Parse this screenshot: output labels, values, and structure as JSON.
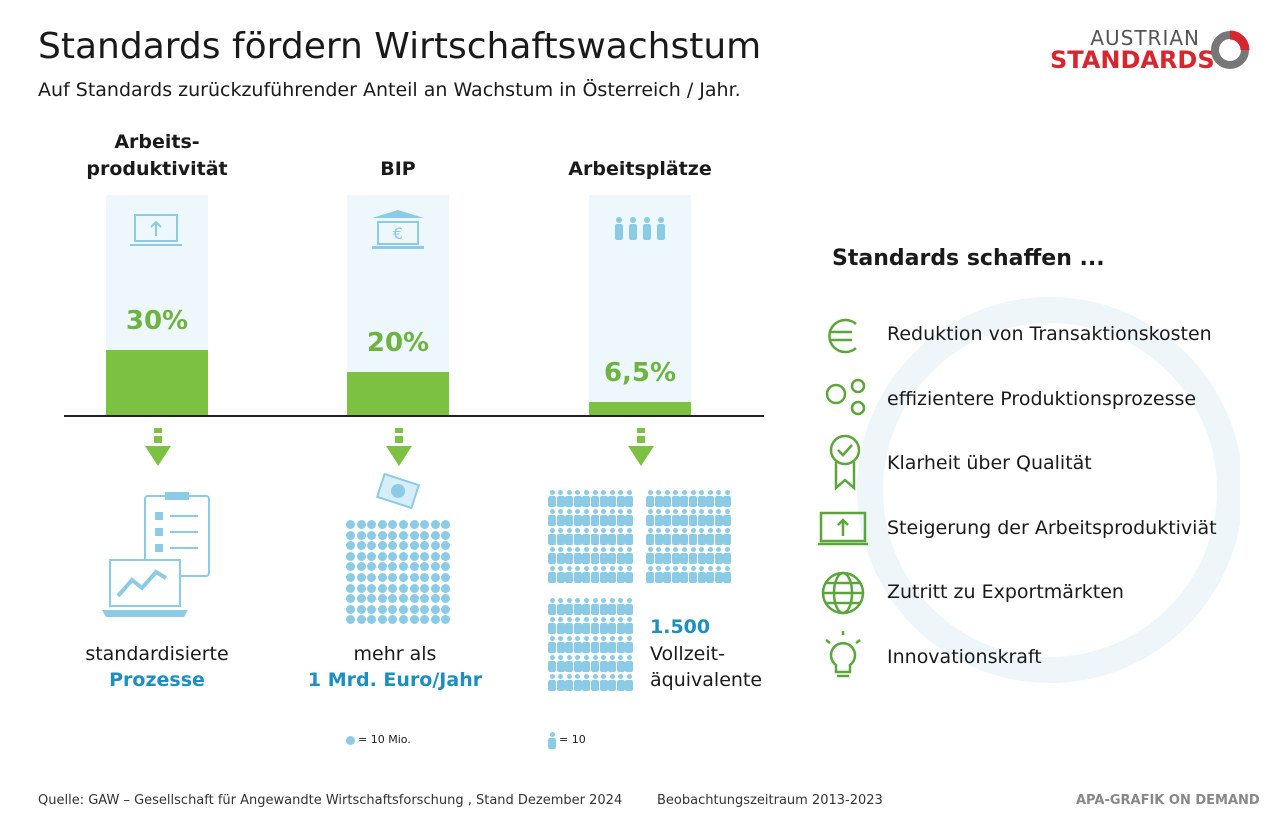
{
  "header": {
    "title": "Standards fördern Wirtschaftswachstum",
    "subtitle": "Auf Standards zurückzuführender Anteil an Wachstum in Österreich / Jahr.",
    "logo_top": "AUSTRIAN",
    "logo_bottom": "STANDARDS"
  },
  "chart_data": {
    "type": "bar",
    "categories": [
      "Arbeits-\nproduktivität",
      "BIP",
      "Arbeitsplätze"
    ],
    "values": [
      30,
      20,
      6.5
    ],
    "value_labels": [
      "30%",
      "20%",
      "6,5%"
    ],
    "color": "#7dc142",
    "ylim": [
      0,
      100
    ]
  },
  "effects": [
    {
      "line1": "standardisierte",
      "line2": "Prozesse"
    },
    {
      "line1": "mehr als",
      "line2": "1 Mrd. Euro/Jahr",
      "legend": "= 10 Mio."
    },
    {
      "line1": "1.500",
      "line2": "Vollzeit-\näquivalente",
      "legend": "= 10"
    }
  ],
  "benefits": {
    "title": "Standards schaffen ...",
    "items": [
      "Reduktion von Transaktionskosten",
      "effizientere Produktionsprozesse",
      "Klarheit über Qualität",
      "Steigerung der Arbeitsproduktiviät",
      "Zutritt zu Exportmärkten",
      "Innovationskraft"
    ]
  },
  "footer": {
    "source": "Quelle: GAW – Gesellschaft für Angewandte Wirtschaftsforschung , Stand Dezember 2024",
    "period": "Beobachtungszeitraum 2013-2023",
    "credit": "APA-GRAFIK ON DEMAND"
  }
}
